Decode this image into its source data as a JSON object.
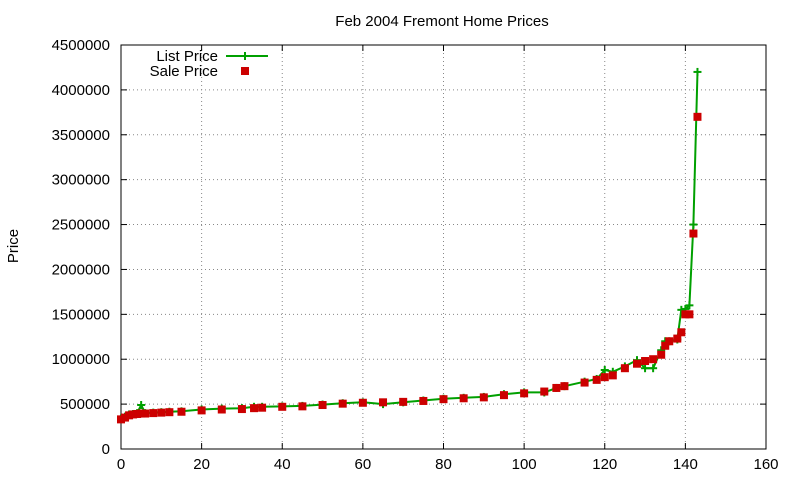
{
  "chart_data": {
    "type": "line",
    "title": "Feb 2004 Fremont Home Prices",
    "xlabel": "",
    "ylabel": "Price",
    "xlim": [
      0,
      160
    ],
    "ylim": [
      0,
      4500000
    ],
    "xticks": [
      0,
      20,
      40,
      60,
      80,
      100,
      120,
      140,
      160
    ],
    "yticks": [
      0,
      500000,
      1000000,
      1500000,
      2000000,
      2500000,
      3000000,
      3500000,
      4000000,
      4500000
    ],
    "grid": true,
    "legend_position": "top-left",
    "series": [
      {
        "name": "List Price",
        "style": "line+cross",
        "color": "#00a000",
        "x": [
          0,
          1,
          2,
          3,
          4,
          5,
          6,
          8,
          10,
          12,
          15,
          20,
          25,
          30,
          33,
          35,
          40,
          45,
          50,
          55,
          60,
          65,
          70,
          75,
          80,
          85,
          90,
          95,
          100,
          105,
          108,
          110,
          115,
          118,
          120,
          122,
          125,
          128,
          130,
          132,
          134,
          135,
          136,
          138,
          139,
          140,
          141,
          142,
          143
        ],
        "y": [
          340000,
          360000,
          385000,
          390000,
          400000,
          490000,
          400000,
          405000,
          410000,
          415000,
          420000,
          440000,
          450000,
          455000,
          470000,
          470000,
          475000,
          480000,
          495000,
          510000,
          520000,
          500000,
          520000,
          540000,
          560000,
          570000,
          580000,
          610000,
          630000,
          630000,
          680000,
          700000,
          750000,
          780000,
          880000,
          860000,
          920000,
          990000,
          900000,
          900000,
          1100000,
          1200000,
          1200000,
          1220000,
          1550000,
          1560000,
          1600000,
          2500000,
          4200000
        ]
      },
      {
        "name": "Sale Price",
        "style": "points",
        "color": "#cc0000",
        "x": [
          0,
          1,
          2,
          3,
          4,
          5,
          6,
          8,
          10,
          12,
          15,
          20,
          25,
          30,
          33,
          35,
          40,
          45,
          50,
          55,
          60,
          65,
          70,
          75,
          80,
          85,
          90,
          95,
          100,
          105,
          108,
          110,
          115,
          118,
          120,
          122,
          125,
          128,
          130,
          132,
          134,
          135,
          136,
          138,
          139,
          140,
          141,
          142,
          143
        ],
        "y": [
          330000,
          350000,
          375000,
          385000,
          390000,
          395000,
          395000,
          400000,
          405000,
          410000,
          415000,
          430000,
          440000,
          445000,
          455000,
          460000,
          470000,
          475000,
          490000,
          505000,
          515000,
          520000,
          525000,
          535000,
          555000,
          565000,
          575000,
          600000,
          620000,
          640000,
          680000,
          700000,
          740000,
          770000,
          800000,
          820000,
          900000,
          950000,
          980000,
          1000000,
          1050000,
          1150000,
          1200000,
          1230000,
          1300000,
          1500000,
          1500000,
          2400000,
          3700000
        ]
      }
    ]
  }
}
